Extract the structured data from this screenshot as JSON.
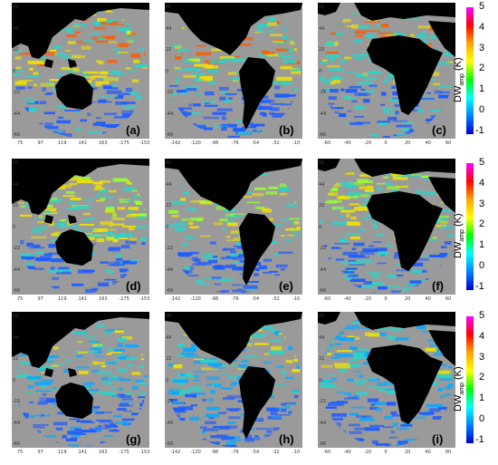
{
  "figure": {
    "panel_labels": [
      "(a)",
      "(b)",
      "(c)",
      "(d)",
      "(e)",
      "(f)",
      "(g)",
      "(h)",
      "(i)"
    ],
    "regions": [
      {
        "name": "pacific",
        "y_ticks": [
          "66",
          "44",
          "22",
          "0",
          "-22",
          "-44",
          "-66"
        ],
        "x_ticks": [
          "75",
          "97",
          "119",
          "141",
          "163",
          "-175",
          "-153"
        ]
      },
      {
        "name": "americas",
        "y_ticks": [
          "66",
          "44",
          "22",
          "0",
          "-22",
          "-44",
          "-66"
        ],
        "x_ticks": [
          "-142",
          "-120",
          "-98",
          "-76",
          "-54",
          "-32",
          "-10"
        ]
      },
      {
        "name": "africa",
        "y_ticks": [
          "66",
          "44",
          "22",
          "0",
          "-22",
          "-44",
          "-66"
        ],
        "x_ticks": [
          "-60",
          "-40",
          "-20",
          "0",
          "20",
          "40",
          "60"
        ]
      }
    ],
    "colorbar": {
      "ticks": [
        "5",
        "4",
        "3",
        "2",
        "1",
        "0",
        "-1"
      ],
      "label_main": "DW",
      "label_sub": "amp",
      "label_unit": " (K)",
      "colors": [
        "#ff00ff",
        "#ff0000",
        "#ffa500",
        "#ffff00",
        "#00ff00",
        "#00ffff",
        "#0080ff",
        "#0000cc"
      ]
    },
    "colors": {
      "background": "#9a9a9a",
      "land": "#000000",
      "cool": "#1e5cff",
      "mid": "#2ad4c8",
      "warm": "#f0e000",
      "hot": "#ff5a00"
    }
  }
}
